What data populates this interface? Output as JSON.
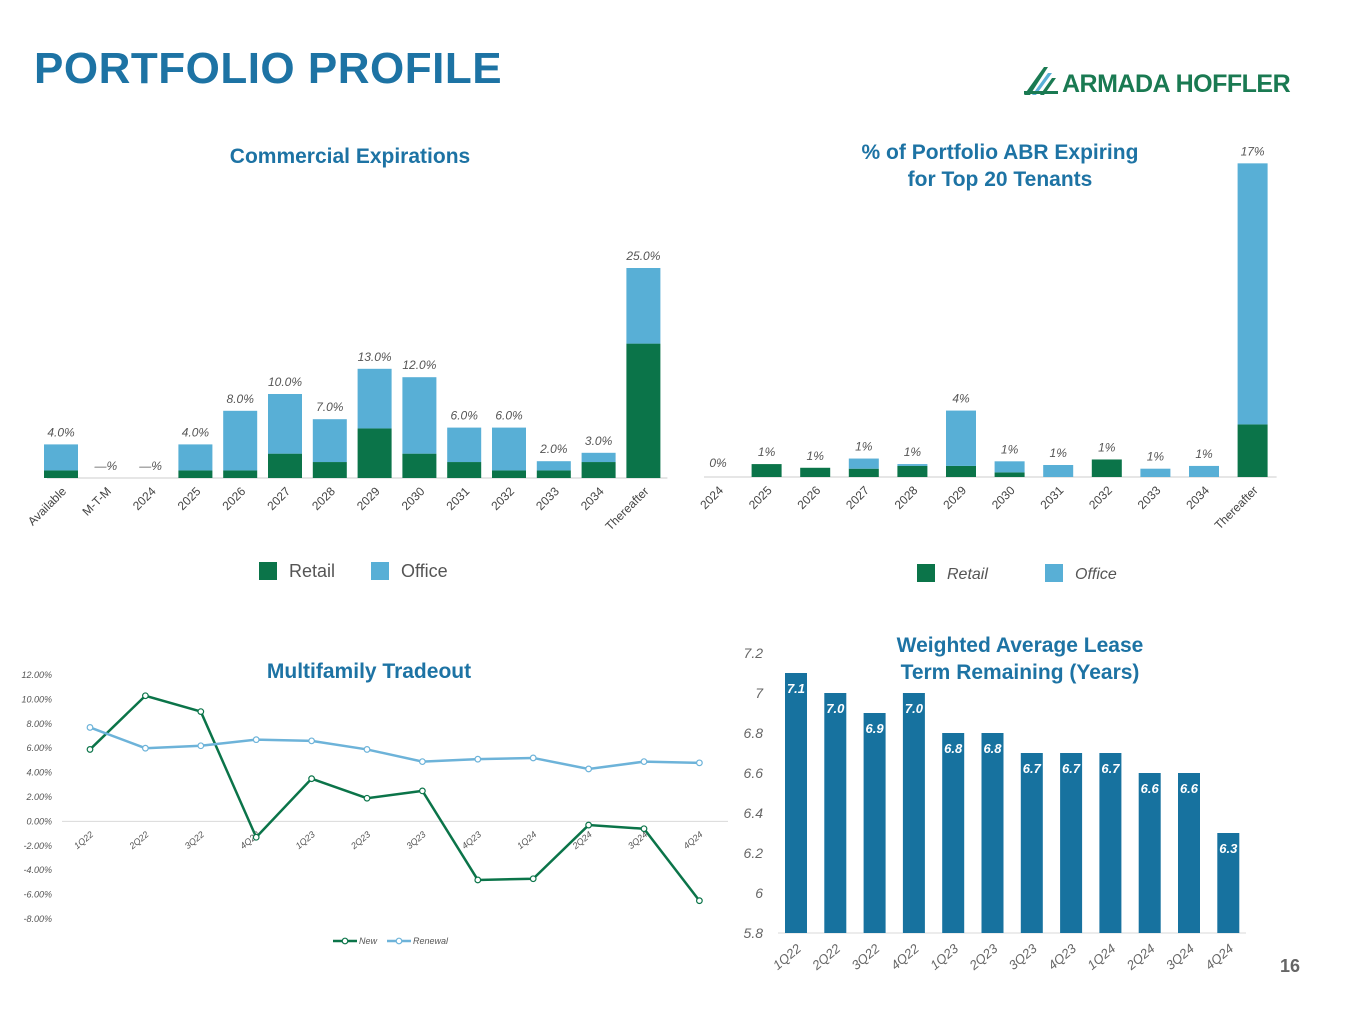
{
  "page": {
    "title": "PORTFOLIO PROFILE",
    "logo_text": "ARMADA HOFFLER",
    "page_number": "16"
  },
  "colors": {
    "title_blue": "#1d73a4",
    "retail_green": "#0b7449",
    "office_blue": "#58afd6",
    "bar_blue": "#17729f",
    "renewal_blue": "#6db3d9"
  },
  "chart_data": [
    {
      "id": "commercial",
      "type": "bar",
      "stacked": true,
      "title": "Commercial Expirations",
      "categories": [
        "Available",
        "M-T-M",
        "2024",
        "2025",
        "2026",
        "2027",
        "2028",
        "2029",
        "2030",
        "2031",
        "2032",
        "2033",
        "2034",
        "Thereafter"
      ],
      "series": [
        {
          "name": "Retail",
          "color": "#0b7449",
          "values": [
            0.9,
            0,
            0,
            0.9,
            0.9,
            2.9,
            1.9,
            5.9,
            2.9,
            1.9,
            0.9,
            0.9,
            1.9,
            16.0
          ]
        },
        {
          "name": "Office",
          "color": "#58afd6",
          "values": [
            3.1,
            0,
            0,
            3.1,
            7.1,
            7.1,
            5.1,
            7.1,
            9.1,
            4.1,
            5.1,
            1.1,
            1.1,
            9.0
          ]
        }
      ],
      "data_labels": [
        "4.0%",
        "—%",
        "—%",
        "4.0%",
        "8.0%",
        "10.0%",
        "7.0%",
        "13.0%",
        "12.0%",
        "6.0%",
        "6.0%",
        "2.0%",
        "3.0%",
        "25.0%"
      ],
      "ylim": [
        0,
        25
      ],
      "legend": [
        "Retail",
        "Office"
      ]
    },
    {
      "id": "top20",
      "type": "bar",
      "stacked": true,
      "title": "% of Portfolio ABR Expiring for Top 20 Tenants",
      "title_lines": [
        "% of Portfolio ABR Expiring",
        "for Top 20 Tenants"
      ],
      "categories": [
        "2024",
        "2025",
        "2026",
        "2027",
        "2028",
        "2029",
        "2030",
        "2031",
        "2032",
        "2033",
        "2034",
        "Thereafter"
      ],
      "series": [
        {
          "name": "Retail",
          "color": "#0b7449",
          "values": [
            0,
            0.7,
            0.5,
            0.45,
            0.6,
            0.6,
            0.25,
            0,
            0.95,
            0,
            0,
            2.85
          ]
        },
        {
          "name": "Office",
          "color": "#58afd6",
          "values": [
            0,
            0,
            0,
            0.55,
            0.1,
            3.0,
            0.6,
            0.65,
            0,
            0.45,
            0.6,
            14.15
          ]
        }
      ],
      "data_labels": [
        "0%",
        "1%",
        "1%",
        "1%",
        "1%",
        "4%",
        "1%",
        "1%",
        "1%",
        "1%",
        "1%",
        "17%"
      ],
      "ylim": [
        0,
        17
      ],
      "legend": [
        "Retail",
        "Office"
      ]
    },
    {
      "id": "multifamily",
      "type": "line",
      "title": "Multifamily Tradeout",
      "x": [
        "1Q22",
        "2Q22",
        "3Q22",
        "4Q22",
        "1Q23",
        "2Q23",
        "3Q23",
        "4Q23",
        "1Q24",
        "2Q24",
        "3Q24",
        "4Q24"
      ],
      "series": [
        {
          "name": "New",
          "color": "#0b7449",
          "values": [
            5.9,
            10.3,
            9.0,
            -1.3,
            3.5,
            1.9,
            2.5,
            -4.8,
            -4.7,
            -0.3,
            -0.6,
            -6.5
          ]
        },
        {
          "name": "Renewal",
          "color": "#6db3d9",
          "values": [
            7.7,
            6.0,
            6.2,
            6.7,
            6.6,
            5.9,
            4.9,
            5.1,
            5.2,
            4.3,
            4.9,
            4.8
          ]
        }
      ],
      "y_ticks": [
        "12.00%",
        "10.00%",
        "8.00%",
        "6.00%",
        "4.00%",
        "2.00%",
        "0.00%",
        "-2.00%",
        "-4.00%",
        "-6.00%",
        "-8.00%"
      ],
      "ylim": [
        -8,
        12
      ],
      "legend": [
        "New",
        "Renewal"
      ]
    },
    {
      "id": "walt",
      "type": "bar",
      "title": "Weighted Average Lease Term Remaining (Years)",
      "title_lines": [
        "Weighted Average Lease",
        "Term Remaining (Years)"
      ],
      "categories": [
        "1Q22",
        "2Q22",
        "3Q22",
        "4Q22",
        "1Q23",
        "2Q23",
        "3Q23",
        "4Q23",
        "1Q24",
        "2Q24",
        "3Q24",
        "4Q24"
      ],
      "values": [
        7.1,
        7.0,
        6.9,
        7.0,
        6.8,
        6.8,
        6.7,
        6.7,
        6.7,
        6.6,
        6.6,
        6.3
      ],
      "data_labels": [
        "7.1",
        "7.0",
        "6.9",
        "7.0",
        "6.8",
        "6.8",
        "6.7",
        "6.7",
        "6.7",
        "6.6",
        "6.6",
        "6.3"
      ],
      "y_ticks": [
        "7.2",
        "7",
        "6.8",
        "6.6",
        "6.4",
        "6.2",
        "6",
        "5.8"
      ],
      "ylim": [
        5.8,
        7.2
      ]
    }
  ]
}
